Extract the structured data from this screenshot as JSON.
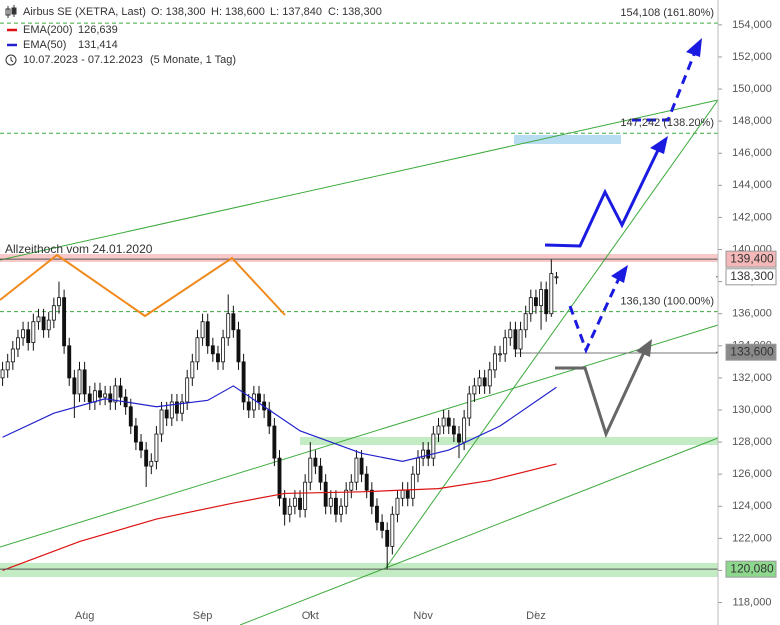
{
  "chart_data": {
    "type": "candlestick",
    "title": "Airbus SE (XETRA, Last)",
    "ohlc_labels": [
      "O: 138,300",
      "H: 138,600",
      "L: 137,840",
      "C: 138,300"
    ],
    "date_range": "10.07.2023 - 07.12.2023",
    "period": "(5 Monate, 1 Tag)",
    "annotation": "Allzeithoch vom 24.01.2020",
    "xlim": [
      -0.5,
      139.5
    ],
    "xticks": [
      {
        "value": 16,
        "label": "Aug"
      },
      {
        "value": 39,
        "label": "Sep"
      },
      {
        "value": 60,
        "label": "Okt"
      },
      {
        "value": 82,
        "label": "Nov"
      },
      {
        "value": 104,
        "label": "Dez"
      }
    ],
    "ylim": [
      116600,
      155550
    ],
    "yticks": [
      {
        "value": 118000,
        "label": "118,000"
      },
      {
        "value": 120000,
        "label": "120,000"
      },
      {
        "value": 122000,
        "label": "122,000"
      },
      {
        "value": 124000,
        "label": "124,000"
      },
      {
        "value": 126000,
        "label": "126,000"
      },
      {
        "value": 128000,
        "label": "128,000"
      },
      {
        "value": 130000,
        "label": "130,000"
      },
      {
        "value": 132000,
        "label": "132,000"
      },
      {
        "value": 134000,
        "label": "134,000"
      },
      {
        "value": 136000,
        "label": "136,000"
      },
      {
        "value": 138000,
        "label": "138,000"
      },
      {
        "value": 140000,
        "label": "140,000"
      },
      {
        "value": 142000,
        "label": "142,000"
      },
      {
        "value": 144000,
        "label": "144,000"
      },
      {
        "value": 146000,
        "label": "146,000"
      },
      {
        "value": 148000,
        "label": "148,000"
      },
      {
        "value": 150000,
        "label": "150,000"
      },
      {
        "value": 152000,
        "label": "152,000"
      },
      {
        "value": 154000,
        "label": "154,000"
      }
    ],
    "up_color": "#ffffff",
    "down_color": "#111111",
    "candles": [
      [
        132000,
        133000,
        131500,
        132500
      ],
      [
        132500,
        133500,
        132000,
        133000
      ],
      [
        133000,
        134300,
        132500,
        133800
      ],
      [
        133800,
        135000,
        133300,
        134500
      ],
      [
        134500,
        135500,
        134000,
        135000
      ],
      [
        135000,
        135500,
        133700,
        134200
      ],
      [
        134200,
        136000,
        133700,
        135500
      ],
      [
        135500,
        136300,
        135000,
        135800
      ],
      [
        135800,
        136300,
        134500,
        135000
      ],
      [
        135000,
        136100,
        134500,
        135600
      ],
      [
        135600,
        137000,
        135100,
        136500
      ],
      [
        136500,
        138000,
        136000,
        137000
      ],
      [
        137000,
        137500,
        133500,
        134000
      ],
      [
        134000,
        134500,
        131500,
        132000
      ],
      [
        132000,
        132500,
        129500,
        131000
      ],
      [
        131000,
        133000,
        130500,
        132500
      ],
      [
        132500,
        133000,
        130500,
        131000
      ],
      [
        131000,
        131500,
        130000,
        130500
      ],
      [
        130500,
        131700,
        130000,
        131200
      ],
      [
        131200,
        131700,
        130300,
        130800
      ],
      [
        130800,
        131500,
        130300,
        131000
      ],
      [
        131000,
        131500,
        130000,
        130500
      ],
      [
        130500,
        132000,
        130000,
        131500
      ],
      [
        131500,
        132000,
        130300,
        130800
      ],
      [
        130800,
        131300,
        129700,
        130200
      ],
      [
        130200,
        130700,
        128500,
        129000
      ],
      [
        129000,
        129500,
        127500,
        128000
      ],
      [
        128000,
        128500,
        127000,
        127500
      ],
      [
        127500,
        128000,
        125200,
        126500
      ],
      [
        126500,
        127300,
        126000,
        126800
      ],
      [
        126800,
        129000,
        126300,
        128500
      ],
      [
        128500,
        130500,
        128000,
        130000
      ],
      [
        130000,
        130500,
        129000,
        129500
      ],
      [
        129500,
        131000,
        129000,
        130500
      ],
      [
        130500,
        131000,
        129300,
        129800
      ],
      [
        129800,
        131000,
        129300,
        130500
      ],
      [
        130500,
        132500,
        130000,
        132000
      ],
      [
        132000,
        133500,
        131500,
        133000
      ],
      [
        133000,
        135000,
        132500,
        134500
      ],
      [
        134500,
        136000,
        134000,
        135500
      ],
      [
        135500,
        136000,
        133500,
        134000
      ],
      [
        134000,
        134500,
        133000,
        133500
      ],
      [
        133500,
        134000,
        132500,
        133000
      ],
      [
        133000,
        135000,
        132500,
        134500
      ],
      [
        134500,
        137200,
        134000,
        136000
      ],
      [
        136000,
        136500,
        134500,
        135000
      ],
      [
        135000,
        135500,
        132500,
        133000
      ],
      [
        133000,
        133500,
        130000,
        130500
      ],
      [
        130500,
        131000,
        129500,
        130000
      ],
      [
        130000,
        131500,
        129500,
        131000
      ],
      [
        131000,
        131500,
        130000,
        130500
      ],
      [
        130500,
        131000,
        129500,
        130000
      ],
      [
        130000,
        130500,
        128500,
        129000
      ],
      [
        129000,
        129500,
        126500,
        127000
      ],
      [
        127000,
        127500,
        124000,
        124500
      ],
      [
        124500,
        125000,
        122800,
        123500
      ],
      [
        123500,
        124500,
        123000,
        124000
      ],
      [
        124000,
        125000,
        123500,
        124500
      ],
      [
        124500,
        125000,
        123300,
        123800
      ],
      [
        123800,
        126000,
        123300,
        125500
      ],
      [
        125500,
        128000,
        125000,
        127000
      ],
      [
        127000,
        127500,
        126000,
        126500
      ],
      [
        126500,
        127000,
        125000,
        125500
      ],
      [
        125500,
        126000,
        123500,
        124000
      ],
      [
        124000,
        125000,
        123500,
        124500
      ],
      [
        124500,
        125000,
        123000,
        123500
      ],
      [
        123500,
        124500,
        123000,
        124000
      ],
      [
        124000,
        125500,
        123500,
        125000
      ],
      [
        125000,
        126000,
        124500,
        125500
      ],
      [
        125500,
        127500,
        125000,
        127000
      ],
      [
        127000,
        127500,
        125500,
        126000
      ],
      [
        126000,
        126500,
        124500,
        125000
      ],
      [
        125000,
        125500,
        123500,
        124000
      ],
      [
        124000,
        124500,
        122500,
        123000
      ],
      [
        123000,
        123500,
        122000,
        122500
      ],
      [
        122500,
        123000,
        120080,
        121500
      ],
      [
        121500,
        124000,
        121000,
        123500
      ],
      [
        123500,
        125000,
        123000,
        124500
      ],
      [
        124500,
        125500,
        124000,
        125000
      ],
      [
        125000,
        125500,
        124000,
        124500
      ],
      [
        124500,
        126500,
        124000,
        126000
      ],
      [
        126000,
        127500,
        125500,
        127000
      ],
      [
        127000,
        128000,
        126500,
        127500
      ],
      [
        127500,
        128000,
        126500,
        127000
      ],
      [
        127000,
        129000,
        126500,
        128500
      ],
      [
        128500,
        129500,
        128000,
        129000
      ],
      [
        129000,
        130000,
        128500,
        129500
      ],
      [
        129500,
        130000,
        128500,
        129000
      ],
      [
        129000,
        129500,
        128000,
        128500
      ],
      [
        128500,
        129000,
        127000,
        128000
      ],
      [
        128000,
        130000,
        127500,
        129500
      ],
      [
        129500,
        131500,
        129000,
        131000
      ],
      [
        131000,
        132000,
        130500,
        131500
      ],
      [
        131500,
        132500,
        131000,
        132000
      ],
      [
        132000,
        132500,
        131000,
        131500
      ],
      [
        131500,
        133000,
        131000,
        132500
      ],
      [
        132500,
        134000,
        132000,
        133500
      ],
      [
        133500,
        134000,
        133000,
        133500
      ],
      [
        133500,
        135000,
        133000,
        134500
      ],
      [
        134500,
        135500,
        134000,
        135000
      ],
      [
        135000,
        135500,
        133300,
        133800
      ],
      [
        133800,
        135500,
        133300,
        135000
      ],
      [
        135000,
        136500,
        134500,
        136000
      ],
      [
        136000,
        137500,
        135500,
        137000
      ],
      [
        137000,
        137500,
        136000,
        136500
      ],
      [
        136500,
        138000,
        135000,
        137500
      ],
      [
        137500,
        138000,
        135500,
        136000
      ],
      [
        136000,
        139400,
        135800,
        138500
      ],
      [
        138300,
        138600,
        137840,
        138300
      ]
    ],
    "series": [
      {
        "name": "EMA(200)",
        "color": "#dd1111",
        "value_label": "126,639",
        "x": [
          0,
          15,
          30,
          45,
          55,
          70,
          85,
          95,
          108
        ],
        "values": [
          120000,
          121800,
          123200,
          124200,
          124800,
          124900,
          125100,
          125600,
          126639
        ]
      },
      {
        "name": "EMA(50)",
        "color": "#2222cc",
        "value_label": "131,414",
        "x": [
          0,
          10,
          20,
          30,
          40,
          45,
          52,
          58,
          64,
          70,
          78,
          87,
          97,
          108
        ],
        "values": [
          128300,
          129800,
          130700,
          130200,
          130600,
          131500,
          130000,
          128700,
          128000,
          127300,
          126800,
          127500,
          129000,
          131414
        ]
      }
    ],
    "levels": [
      {
        "value": 139400,
        "label": "139,400",
        "color": "#f5b8b8"
      },
      {
        "value": 138300,
        "label": "138,300",
        "color": "#ffffff"
      },
      {
        "value": 133600,
        "label": "133,600",
        "color": "#8a8a8a"
      },
      {
        "value": 120080,
        "label": "120,080",
        "color": "#8ed88e"
      }
    ],
    "fib_levels": [
      {
        "value": 154108,
        "label": "154,108 (161.80%)"
      },
      {
        "value": 147242,
        "label": "147,242 (138.20%)"
      },
      {
        "value": 136130,
        "label": "136,130 (100.00%)"
      }
    ]
  }
}
